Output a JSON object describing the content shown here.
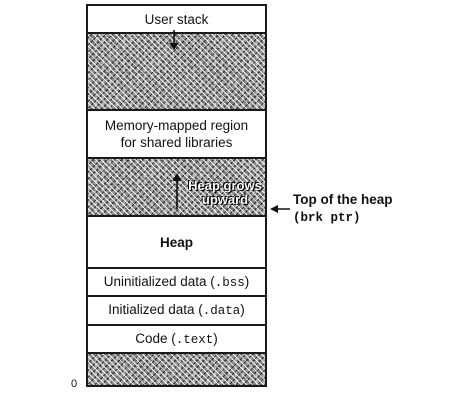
{
  "diagram": {
    "regions": {
      "user_stack": "User stack",
      "mmap_line1": "Memory-mapped region",
      "mmap_line2": "for shared libraries",
      "heap_grows_line1": "Heap grows",
      "heap_grows_line2": "upward",
      "heap": "Heap",
      "bss_text": "Uninitialized data (",
      "bss_mono": ".bss",
      "bss_close": ")",
      "data_text": "Initialized data (",
      "data_mono": ".data",
      "data_close": ")",
      "code_text": "Code (",
      "code_mono": ".text",
      "code_close": ")"
    },
    "top_of_heap": {
      "label": "Top of the heap",
      "sub": "(brk ptr)"
    },
    "address_zero": "0"
  }
}
